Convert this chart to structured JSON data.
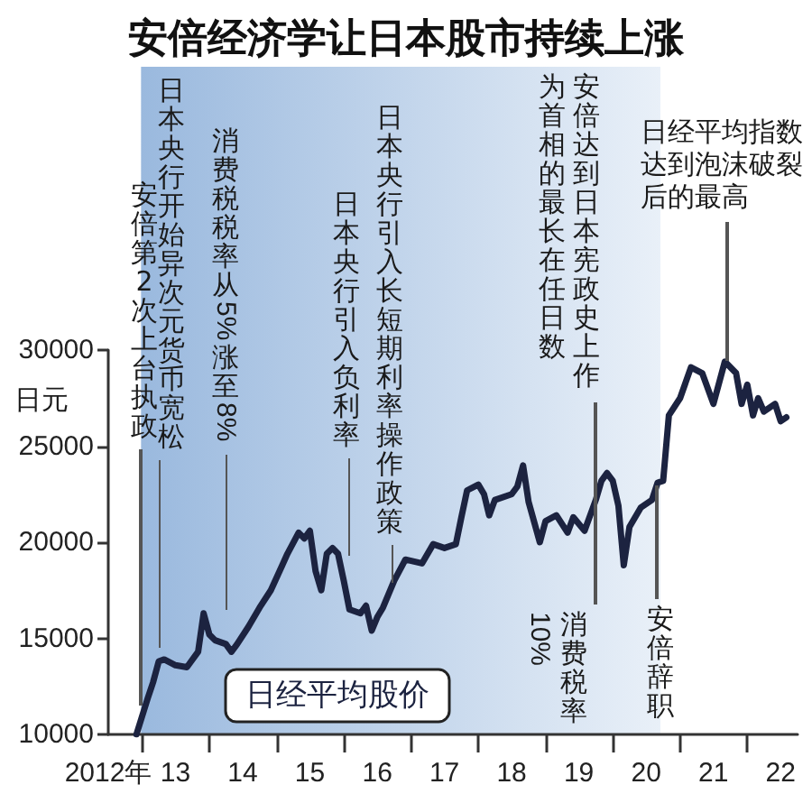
{
  "chart_data": {
    "type": "line",
    "title": "安倍经济学让日本股市持续上涨",
    "ylabel": "日元",
    "x": [
      "2012-12",
      "2013-02",
      "2013-03",
      "2013-04",
      "2013-05",
      "2013-07",
      "2013-09",
      "2013-11",
      "2013-12",
      "2014-01",
      "2014-02",
      "2014-04",
      "2014-05",
      "2014-06",
      "2014-08",
      "2014-10",
      "2014-12",
      "2015-02",
      "2015-03",
      "2015-05",
      "2015-06",
      "2015-07",
      "2015-08",
      "2015-09",
      "2015-10",
      "2015-11",
      "2015-12",
      "2016-01",
      "2016-02",
      "2016-04",
      "2016-05",
      "2016-06",
      "2016-07",
      "2016-08",
      "2016-10",
      "2016-12",
      "2017-03",
      "2017-05",
      "2017-07",
      "2017-09",
      "2017-10",
      "2017-11",
      "2018-01",
      "2018-02",
      "2018-03",
      "2018-04",
      "2018-07",
      "2018-08",
      "2018-09",
      "2018-10",
      "2018-12",
      "2019-01",
      "2019-03",
      "2019-05",
      "2019-06",
      "2019-08",
      "2019-10",
      "2019-11",
      "2019-12",
      "2020-01",
      "2020-02",
      "2020-03",
      "2020-04",
      "2020-06",
      "2020-08",
      "2020-09",
      "2020-10",
      "2020-11",
      "2021-01",
      "2021-03",
      "2021-05",
      "2021-07",
      "2021-09",
      "2021-11",
      "2021-12",
      "2022-01",
      "2022-02",
      "2022-03",
      "2022-04",
      "2022-06",
      "2022-07",
      "2022-08"
    ],
    "series": [
      {
        "name": "日经平均股价",
        "color": "#1c2340",
        "values": [
          10000,
          11900,
          12700,
          13800,
          13900,
          13600,
          13500,
          14300,
          16300,
          15200,
          14900,
          14700,
          14300,
          14700,
          15600,
          16600,
          17500,
          18800,
          19400,
          20500,
          20200,
          20600,
          18500,
          17500,
          19400,
          19700,
          19400,
          18000,
          16500,
          16300,
          16700,
          15400,
          16100,
          16600,
          18000,
          19100,
          18900,
          19900,
          19700,
          19900,
          21300,
          22700,
          23000,
          22500,
          21400,
          22200,
          22500,
          22900,
          24000,
          22100,
          20000,
          21100,
          21400,
          20500,
          21300,
          20600,
          22200,
          23200,
          23600,
          23200,
          21900,
          18800,
          20800,
          21800,
          22200,
          23100,
          23200,
          26600,
          27500,
          29100,
          28800,
          27200,
          29400,
          28800,
          27200,
          28200,
          26600,
          27500,
          26800,
          27200,
          26300,
          26500
        ]
      }
    ],
    "xlim": [
      "2012-07",
      "2022-10"
    ],
    "xticks": [
      {
        "value": "2012-07",
        "label": "2012年"
      },
      {
        "value": "2013-01",
        "label": null
      },
      {
        "value": "2013-07",
        "label": "13"
      },
      {
        "value": "2014-01",
        "label": null
      },
      {
        "value": "2014-07",
        "label": "14"
      },
      {
        "value": "2015-01",
        "label": null
      },
      {
        "value": "2015-07",
        "label": "15"
      },
      {
        "value": "2016-01",
        "label": null
      },
      {
        "value": "2016-07",
        "label": "16"
      },
      {
        "value": "2017-01",
        "label": null
      },
      {
        "value": "2017-07",
        "label": "17"
      },
      {
        "value": "2018-01",
        "label": null
      },
      {
        "value": "2018-07",
        "label": "18"
      },
      {
        "value": "2019-01",
        "label": null
      },
      {
        "value": "2019-07",
        "label": "19"
      },
      {
        "value": "2020-01",
        "label": null
      },
      {
        "value": "2020-07",
        "label": "20"
      },
      {
        "value": "2021-01",
        "label": null
      },
      {
        "value": "2021-07",
        "label": "21"
      },
      {
        "value": "2022-01",
        "label": null
      },
      {
        "value": "2022-07",
        "label": "22"
      }
    ],
    "ylim": [
      10000,
      30000
    ],
    "yticks": [
      10000,
      15000,
      20000,
      25000,
      30000
    ],
    "bands": [
      {
        "axis": "x",
        "from": "2012-12-26",
        "to": "2020-09-16",
        "color": "#9ab9de"
      }
    ],
    "annotations": [
      "安倍第2次上台执政",
      "日本央行开始异次元货币宽松",
      "消费税税率从5%涨至8%",
      "日本央行引入负利率",
      "日本央行引入长短期利率操作政策",
      "安倍达到日本宪政史上作为首相的最长在任日数",
      "消费税率10%",
      "安倍辞职",
      "日经平均指数达到泡沫破裂后的最高"
    ],
    "legend": "bottom left",
    "marker": "none"
  }
}
